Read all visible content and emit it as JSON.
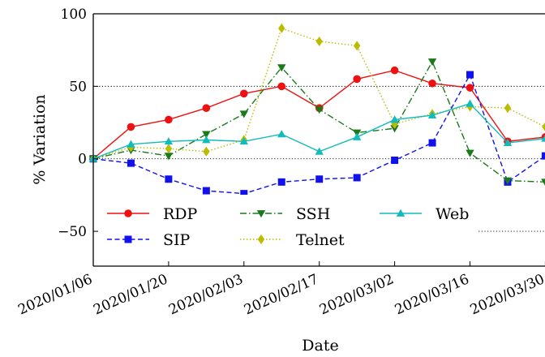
{
  "chart_data": {
    "type": "line",
    "title": "",
    "xlabel": "Date",
    "ylabel": "% Variation",
    "x_ticks": [
      "2020/01/06",
      "2020/01/20",
      "2020/02/03",
      "2020/02/17",
      "2020/03/02",
      "2020/03/16",
      "2020/03/30"
    ],
    "x": [
      "2020/01/06",
      "2020/01/13",
      "2020/01/20",
      "2020/01/27",
      "2020/02/03",
      "2020/02/10",
      "2020/02/17",
      "2020/02/24",
      "2020/03/02",
      "2020/03/09",
      "2020/03/16",
      "2020/03/23",
      "2020/03/30"
    ],
    "y_ticks": [
      -50,
      0,
      50,
      100
    ],
    "y_tick_labels": [
      "−50",
      "0",
      "50",
      "100"
    ],
    "ylim": [
      -74,
      100
    ],
    "grid": "dotted horizontal lines at -50, 0, 50",
    "legend_position": "lower center",
    "series": [
      {
        "name": "RDP",
        "color": "#ee1111",
        "dash": "solid",
        "marker": "circle",
        "values": [
          0,
          22,
          27,
          35,
          45,
          50,
          35,
          55,
          61,
          52,
          49,
          12,
          15
        ]
      },
      {
        "name": "SIP",
        "color": "#1111ee",
        "dash": "dashed",
        "marker": "square",
        "values": [
          0,
          -3,
          -14,
          -22,
          -24,
          -16,
          -14,
          -13,
          -1,
          11,
          58,
          -16,
          2
        ]
      },
      {
        "name": "SSH",
        "color": "#1a7a1a",
        "dash": "dashdot",
        "marker": "triangle-down",
        "values": [
          0,
          6,
          2,
          17,
          31,
          63,
          34,
          18,
          21,
          67,
          4,
          -15,
          -16
        ]
      },
      {
        "name": "Telnet",
        "color": "#bbbb00",
        "dash": "dotted",
        "marker": "diamond",
        "values": [
          0,
          8,
          7,
          5,
          13,
          90,
          81,
          78,
          24,
          31,
          36,
          35,
          22
        ]
      },
      {
        "name": "Web",
        "color": "#11bbbb",
        "dash": "solid",
        "marker": "triangle-up",
        "values": [
          0,
          10,
          12,
          13,
          12,
          17,
          5,
          15,
          27,
          30,
          38,
          11,
          14
        ]
      }
    ]
  }
}
